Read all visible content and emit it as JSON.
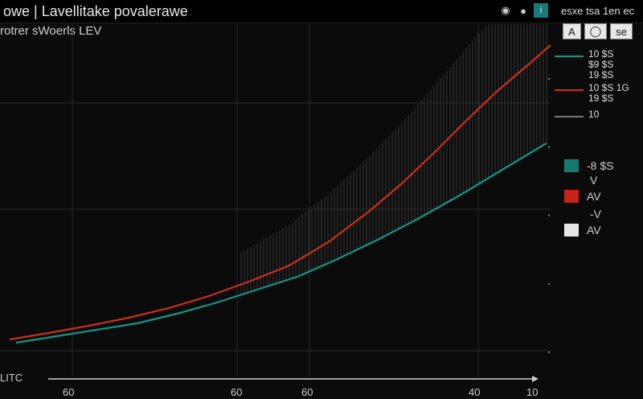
{
  "window": {
    "title": "owe | Lavellitake povalerawe",
    "right_text": "esxe tsa 1en ec",
    "icons": [
      "eye-icon",
      "settings-icon",
      "info-icon"
    ]
  },
  "subtitle": "rotrer sWoerls LEV",
  "toolbar": {
    "a_label": "A",
    "eye_label": "◯",
    "text_label": "se"
  },
  "legend": {
    "teal_values": "10 $S\n$9 $S\n19 $S",
    "red_values": "10 $S 1G\n19 $S",
    "gray_values": "10",
    "boxes": [
      {
        "label": "-8 $S",
        "color": "#137b6e"
      },
      {
        "label": "AV",
        "color": "#c8231a"
      },
      {
        "label": "AV",
        "color": "#e6e6e6"
      }
    ],
    "note_a": "V",
    "note_b": "-V"
  },
  "axis_bottom": {
    "corner_label": "LITC",
    "tick_labels": [
      "60",
      "60",
      "60",
      "40",
      "10"
    ]
  },
  "chart_data": {
    "type": "line",
    "title": "",
    "xlabel": "",
    "ylabel": "",
    "series": [
      {
        "color": "#c8301e",
        "values": [
          [
            12,
            422
          ],
          [
            60,
            414
          ],
          [
            110,
            405
          ],
          [
            160,
            395
          ],
          [
            210,
            383
          ],
          [
            260,
            368
          ],
          [
            310,
            350
          ],
          [
            360,
            330
          ],
          [
            410,
            300
          ],
          [
            460,
            262
          ],
          [
            500,
            228
          ],
          [
            540,
            190
          ],
          [
            580,
            150
          ],
          [
            620,
            112
          ],
          [
            660,
            78
          ],
          [
            685,
            56
          ]
        ]
      },
      {
        "color": "#149486",
        "values": [
          [
            20,
            426
          ],
          [
            70,
            418
          ],
          [
            120,
            410
          ],
          [
            170,
            402
          ],
          [
            220,
            390
          ],
          [
            270,
            376
          ],
          [
            320,
            360
          ],
          [
            370,
            344
          ],
          [
            420,
            322
          ],
          [
            470,
            298
          ],
          [
            520,
            272
          ],
          [
            570,
            244
          ],
          [
            620,
            214
          ],
          [
            660,
            190
          ],
          [
            680,
            178
          ]
        ]
      }
    ],
    "grid": true,
    "legend": "right"
  }
}
